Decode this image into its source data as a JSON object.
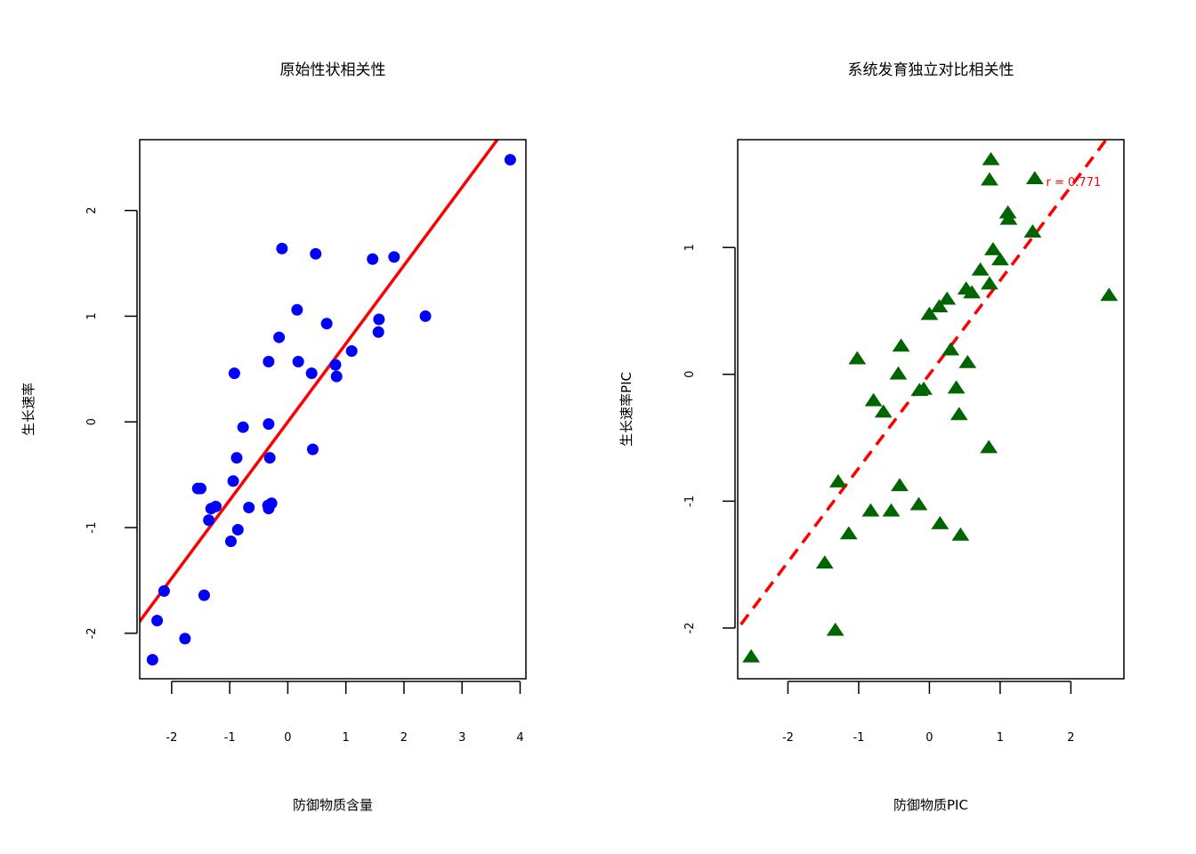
{
  "chart_data": [
    {
      "type": "scatter",
      "title": "原始性状相关性",
      "xlabel": "防御物质含量",
      "ylabel": "生长速率",
      "xlim": [
        -2.55,
        4.1
      ],
      "ylim": [
        -2.43,
        2.67
      ],
      "xticks": [
        -2,
        -1,
        0,
        1,
        2,
        3,
        4
      ],
      "yticks": [
        -2,
        -1,
        0,
        1,
        2
      ],
      "xtick_labels": [
        "-2",
        "-1",
        "0",
        "1",
        "2",
        "3",
        "4"
      ],
      "ytick_labels": [
        "-2",
        "-1",
        "0",
        "1",
        "2"
      ],
      "grid": false,
      "marker": "circle",
      "point_color": "#0000ff",
      "line_color": "#ff0000",
      "line_style": "solid",
      "regression_line": {
        "intercept": 0.0,
        "slope": 0.74
      },
      "points": [
        {
          "x": -2.33,
          "y": -2.25
        },
        {
          "x": -2.25,
          "y": -1.88
        },
        {
          "x": -2.13,
          "y": -1.6
        },
        {
          "x": -1.77,
          "y": -2.05
        },
        {
          "x": -1.55,
          "y": -0.63
        },
        {
          "x": -1.5,
          "y": -0.63
        },
        {
          "x": -1.44,
          "y": -1.64
        },
        {
          "x": -1.36,
          "y": -0.93
        },
        {
          "x": -1.32,
          "y": -0.82
        },
        {
          "x": -1.24,
          "y": -0.8
        },
        {
          "x": -0.98,
          "y": -1.13
        },
        {
          "x": -0.94,
          "y": -0.56
        },
        {
          "x": -0.92,
          "y": 0.46
        },
        {
          "x": -0.88,
          "y": -0.34
        },
        {
          "x": -0.86,
          "y": -1.02
        },
        {
          "x": -0.77,
          "y": -0.05
        },
        {
          "x": -0.67,
          "y": -0.81
        },
        {
          "x": -0.33,
          "y": -0.02
        },
        {
          "x": -0.33,
          "y": 0.57
        },
        {
          "x": -0.31,
          "y": -0.34
        },
        {
          "x": -0.34,
          "y": -0.79
        },
        {
          "x": -0.33,
          "y": -0.82
        },
        {
          "x": -0.28,
          "y": -0.77
        },
        {
          "x": -0.15,
          "y": 0.8
        },
        {
          "x": -0.1,
          "y": 1.64
        },
        {
          "x": 0.16,
          "y": 1.06
        },
        {
          "x": 0.18,
          "y": 0.57
        },
        {
          "x": 0.41,
          "y": 0.46
        },
        {
          "x": 0.43,
          "y": -0.26
        },
        {
          "x": 0.48,
          "y": 1.59
        },
        {
          "x": 0.67,
          "y": 0.93
        },
        {
          "x": 0.82,
          "y": 0.54
        },
        {
          "x": 0.84,
          "y": 0.43
        },
        {
          "x": 1.1,
          "y": 0.67
        },
        {
          "x": 1.46,
          "y": 1.54
        },
        {
          "x": 1.56,
          "y": 0.85
        },
        {
          "x": 1.57,
          "y": 0.97
        },
        {
          "x": 1.83,
          "y": 1.56
        },
        {
          "x": 2.37,
          "y": 1.0
        },
        {
          "x": 3.83,
          "y": 2.48
        }
      ]
    },
    {
      "type": "scatter",
      "title": "系统发育独立对比相关性",
      "xlabel": "防御物质PIC",
      "ylabel": "生长速率PIC",
      "xlim": [
        -2.71,
        2.75
      ],
      "ylim": [
        -2.4,
        1.85
      ],
      "xticks": [
        -2,
        -1,
        0,
        1,
        2
      ],
      "yticks": [
        -2,
        -1,
        0,
        1
      ],
      "xtick_labels": [
        "-2",
        "-1",
        "0",
        "1",
        "2"
      ],
      "ytick_labels": [
        "-2",
        "-1",
        "0",
        "1"
      ],
      "grid": false,
      "marker": "triangle",
      "point_color": "#006400",
      "line_color": "#ff0000",
      "line_style": "dashed",
      "regression_line": {
        "intercept": 0.0,
        "slope": 0.74
      },
      "annotation": {
        "text": "r = 0.771",
        "x": 2.0,
        "y": 1.52,
        "color": "#ff0000"
      },
      "points": [
        {
          "x": -2.52,
          "y": -2.23
        },
        {
          "x": -1.48,
          "y": -1.49
        },
        {
          "x": -1.33,
          "y": -2.02
        },
        {
          "x": -1.29,
          "y": -0.85
        },
        {
          "x": -1.14,
          "y": -1.26
        },
        {
          "x": -1.02,
          "y": 0.12
        },
        {
          "x": -0.83,
          "y": -1.08
        },
        {
          "x": -0.79,
          "y": -0.21
        },
        {
          "x": -0.65,
          "y": -0.3
        },
        {
          "x": -0.54,
          "y": -1.08
        },
        {
          "x": -0.44,
          "y": 0.0
        },
        {
          "x": -0.42,
          "y": -0.88
        },
        {
          "x": -0.4,
          "y": 0.22
        },
        {
          "x": -0.15,
          "y": -1.03
        },
        {
          "x": -0.14,
          "y": -0.13
        },
        {
          "x": -0.08,
          "y": -0.12
        },
        {
          "x": 0.0,
          "y": 0.47
        },
        {
          "x": 0.14,
          "y": 0.53
        },
        {
          "x": 0.15,
          "y": -1.18
        },
        {
          "x": 0.25,
          "y": 0.59
        },
        {
          "x": 0.3,
          "y": 0.19
        },
        {
          "x": 0.38,
          "y": -0.11
        },
        {
          "x": 0.42,
          "y": -0.32
        },
        {
          "x": 0.44,
          "y": -1.27
        },
        {
          "x": 0.52,
          "y": 0.67
        },
        {
          "x": 0.54,
          "y": 0.09
        },
        {
          "x": 0.6,
          "y": 0.64
        },
        {
          "x": 0.72,
          "y": 0.82
        },
        {
          "x": 0.84,
          "y": -0.58
        },
        {
          "x": 0.85,
          "y": 0.71
        },
        {
          "x": 0.87,
          "y": 1.69
        },
        {
          "x": 0.85,
          "y": 1.53
        },
        {
          "x": 0.9,
          "y": 0.98
        },
        {
          "x": 1.0,
          "y": 0.9
        },
        {
          "x": 1.11,
          "y": 1.27
        },
        {
          "x": 1.12,
          "y": 1.22
        },
        {
          "x": 1.46,
          "y": 1.12
        },
        {
          "x": 1.49,
          "y": 1.54
        },
        {
          "x": 2.54,
          "y": 0.62
        }
      ]
    }
  ]
}
